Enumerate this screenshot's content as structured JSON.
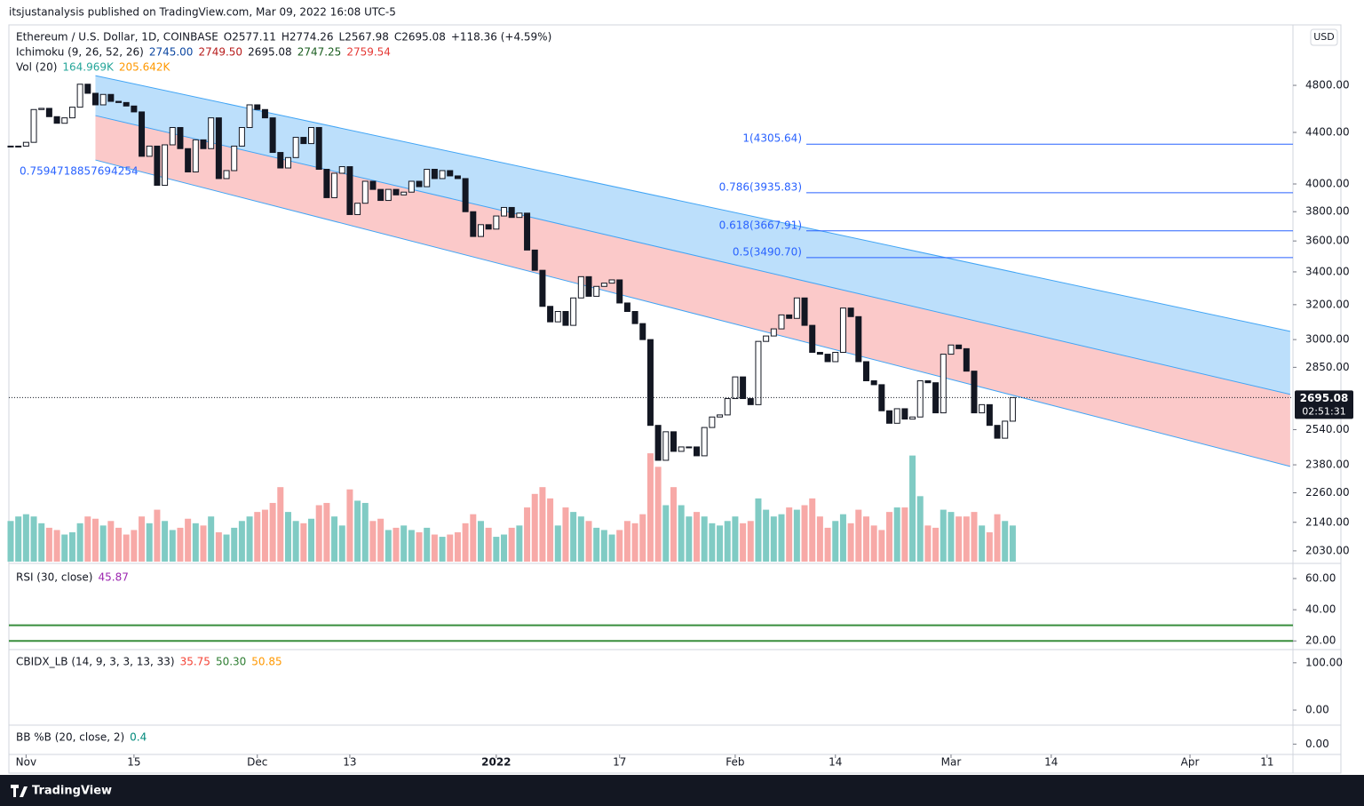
{
  "header": {
    "publisher": "itsjustanalysis published on TradingView.com, Mar 09, 2022 16:08 UTC-5"
  },
  "footer": {
    "brand": "TradingView"
  },
  "chart_data": [
    {
      "type": "candlestick",
      "title": "Ethereum / U.S. Dollar, 1D, COINBASE",
      "readouts": [
        "O2577.11",
        "H2774.26",
        "L2567.98",
        "C2695.08",
        "+118.36 (+4.59%)"
      ],
      "indicators": [
        {
          "name": "Ichimoku (9, 26, 52, 26)",
          "readouts": [
            "2745.00",
            "2749.50",
            "2695.08",
            "2747.25",
            "2759.54"
          ],
          "colors": [
            "#0d47a1",
            "#b71c1c",
            "#131722",
            "#1b5e20",
            "#e53935"
          ]
        },
        {
          "name": "Vol (20)",
          "readouts": [
            "164.969K",
            "205.642K"
          ],
          "colors": [
            "#26a69a",
            "#ff9800"
          ]
        }
      ],
      "currency": "USD",
      "last_price_label": "2695.08",
      "countdown": "02:51:31",
      "log_scale": true,
      "xlim": [
        -0.23,
        166.36
      ],
      "xticks": [
        {
          "value": 2,
          "label": "Nov"
        },
        {
          "value": 16,
          "label": "15"
        },
        {
          "value": 32,
          "label": "Dec"
        },
        {
          "value": 44,
          "label": "13"
        },
        {
          "value": 63,
          "label": "2022"
        },
        {
          "value": 79,
          "label": "17"
        },
        {
          "value": 94,
          "label": "Feb"
        },
        {
          "value": 107,
          "label": "14"
        },
        {
          "value": 122,
          "label": "Mar"
        },
        {
          "value": 135,
          "label": "14"
        },
        {
          "value": 153,
          "label": "Apr"
        },
        {
          "value": 163,
          "label": "11"
        }
      ],
      "ylim": [
        1990,
        5350
      ],
      "yticks": [
        {
          "value": 4800,
          "label": "4800.00"
        },
        {
          "value": 4400,
          "label": "4400.00"
        },
        {
          "value": 4000,
          "label": "4000.00"
        },
        {
          "value": 3800,
          "label": "3800.00"
        },
        {
          "value": 3600,
          "label": "3600.00"
        },
        {
          "value": 3400,
          "label": "3400.00"
        },
        {
          "value": 3200,
          "label": "3200.00"
        },
        {
          "value": 3000,
          "label": "3000.00"
        },
        {
          "value": 2850,
          "label": "2850.00"
        },
        {
          "value": 2540,
          "label": "2540.00"
        },
        {
          "value": 2380,
          "label": "2380.00"
        },
        {
          "value": 2260,
          "label": "2260.00"
        },
        {
          "value": 2140,
          "label": "2140.00"
        },
        {
          "value": 2030,
          "label": "2030.00"
        }
      ],
      "closes": [
        4290,
        4290,
        4320,
        4590,
        4600,
        4530,
        4475,
        4520,
        4610,
        4810,
        4730,
        4630,
        4720,
        4660,
        4650,
        4620,
        4570,
        4210,
        4290,
        3990,
        4300,
        4440,
        4270,
        4090,
        4340,
        4270,
        4520,
        4040,
        4100,
        4290,
        4440,
        4630,
        4590,
        4520,
        4240,
        4120,
        4200,
        4360,
        4310,
        4440,
        4110,
        3900,
        4080,
        4130,
        3780,
        3860,
        4020,
        3960,
        3880,
        3960,
        3920,
        3940,
        4020,
        3980,
        4110,
        4040,
        4100,
        4060,
        4040,
        3800,
        3630,
        3710,
        3680,
        3770,
        3830,
        3760,
        3790,
        3540,
        3410,
        3190,
        3100,
        3160,
        3080,
        3240,
        3370,
        3250,
        3310,
        3330,
        3350,
        3210,
        3160,
        3090,
        3000,
        2560,
        2400,
        2530,
        2440,
        2460,
        2460,
        2420,
        2550,
        2600,
        2610,
        2690,
        2800,
        2690,
        2660,
        2990,
        3020,
        3060,
        3140,
        3120,
        3240,
        3080,
        2930,
        2920,
        2880,
        2930,
        3180,
        3130,
        2880,
        2780,
        2760,
        2630,
        2570,
        2640,
        2590,
        2600,
        2780,
        2770,
        2620,
        2920,
        2970,
        2950,
        2830,
        2620,
        2660,
        2560,
        2500,
        2580,
        2695.08
      ],
      "volume": [
        180,
        200,
        210,
        200,
        170,
        150,
        140,
        120,
        130,
        170,
        200,
        190,
        160,
        180,
        150,
        120,
        140,
        200,
        170,
        230,
        180,
        140,
        150,
        190,
        170,
        160,
        200,
        130,
        120,
        150,
        180,
        200,
        220,
        230,
        260,
        330,
        220,
        180,
        170,
        190,
        250,
        260,
        200,
        160,
        320,
        270,
        260,
        180,
        190,
        140,
        150,
        160,
        140,
        130,
        150,
        120,
        110,
        120,
        130,
        170,
        210,
        180,
        150,
        110,
        120,
        150,
        160,
        240,
        300,
        330,
        280,
        160,
        240,
        220,
        200,
        180,
        150,
        140,
        120,
        140,
        180,
        170,
        210,
        480,
        420,
        250,
        330,
        250,
        200,
        220,
        200,
        170,
        160,
        180,
        200,
        170,
        180,
        280,
        230,
        200,
        210,
        240,
        230,
        250,
        280,
        200,
        150,
        180,
        210,
        170,
        230,
        200,
        160,
        140,
        220,
        240,
        240,
        470,
        290,
        160,
        150,
        230,
        220,
        200,
        200,
        220,
        160,
        130,
        210,
        180,
        160
      ],
      "channel": {
        "x": [
          11,
          166
        ],
        "upper": [
          4887,
          3046
        ],
        "middle": [
          4539,
          2711
        ],
        "lower": [
          4181,
          2373
        ],
        "colors": [
          "#90caf9",
          "#f8a5a5"
        ]
      },
      "fib_levels": [
        {
          "value": 4305.64,
          "label": "1(4305.64)"
        },
        {
          "value": 3935.83,
          "label": "0.786(3935.83)"
        },
        {
          "value": 3667.91,
          "label": "0.618(3667.91)"
        },
        {
          "value": 3490.7,
          "label": "0.5(3490.70)"
        }
      ],
      "fib_color": "#2962ff",
      "annotation": "0.7594718857694254"
    },
    {
      "type": "line",
      "title": "RSI (30, close)",
      "readouts": [
        "45.87"
      ],
      "colors": [
        "#9c27b0"
      ],
      "ylim": [
        15,
        68
      ],
      "yticks": [
        {
          "value": 60,
          "label": "60.00"
        },
        {
          "value": 40,
          "label": "40.00"
        },
        {
          "value": 20,
          "label": "20.00"
        }
      ],
      "bands": [
        30,
        20
      ],
      "band_color": "#388e3c"
    },
    {
      "type": "line",
      "title": "CBIDX_LB (14, 9, 3, 3, 13, 33)",
      "readouts": [
        "35.75",
        "50.30",
        "50.85"
      ],
      "colors": [
        "#f44336",
        "#2e7d32",
        "#ff9800"
      ],
      "ylim": [
        -30,
        126
      ],
      "yticks": [
        {
          "value": 100,
          "label": "100.00"
        },
        {
          "value": 0,
          "label": "0.00"
        }
      ]
    },
    {
      "type": "line",
      "title": "BB %B (20, close, 2)",
      "readouts": [
        "0.4"
      ],
      "colors": [
        "#00897b"
      ],
      "ylim": [
        -0.55,
        1.05
      ],
      "yticks": [
        {
          "value": 0,
          "label": "0.00"
        }
      ]
    }
  ]
}
